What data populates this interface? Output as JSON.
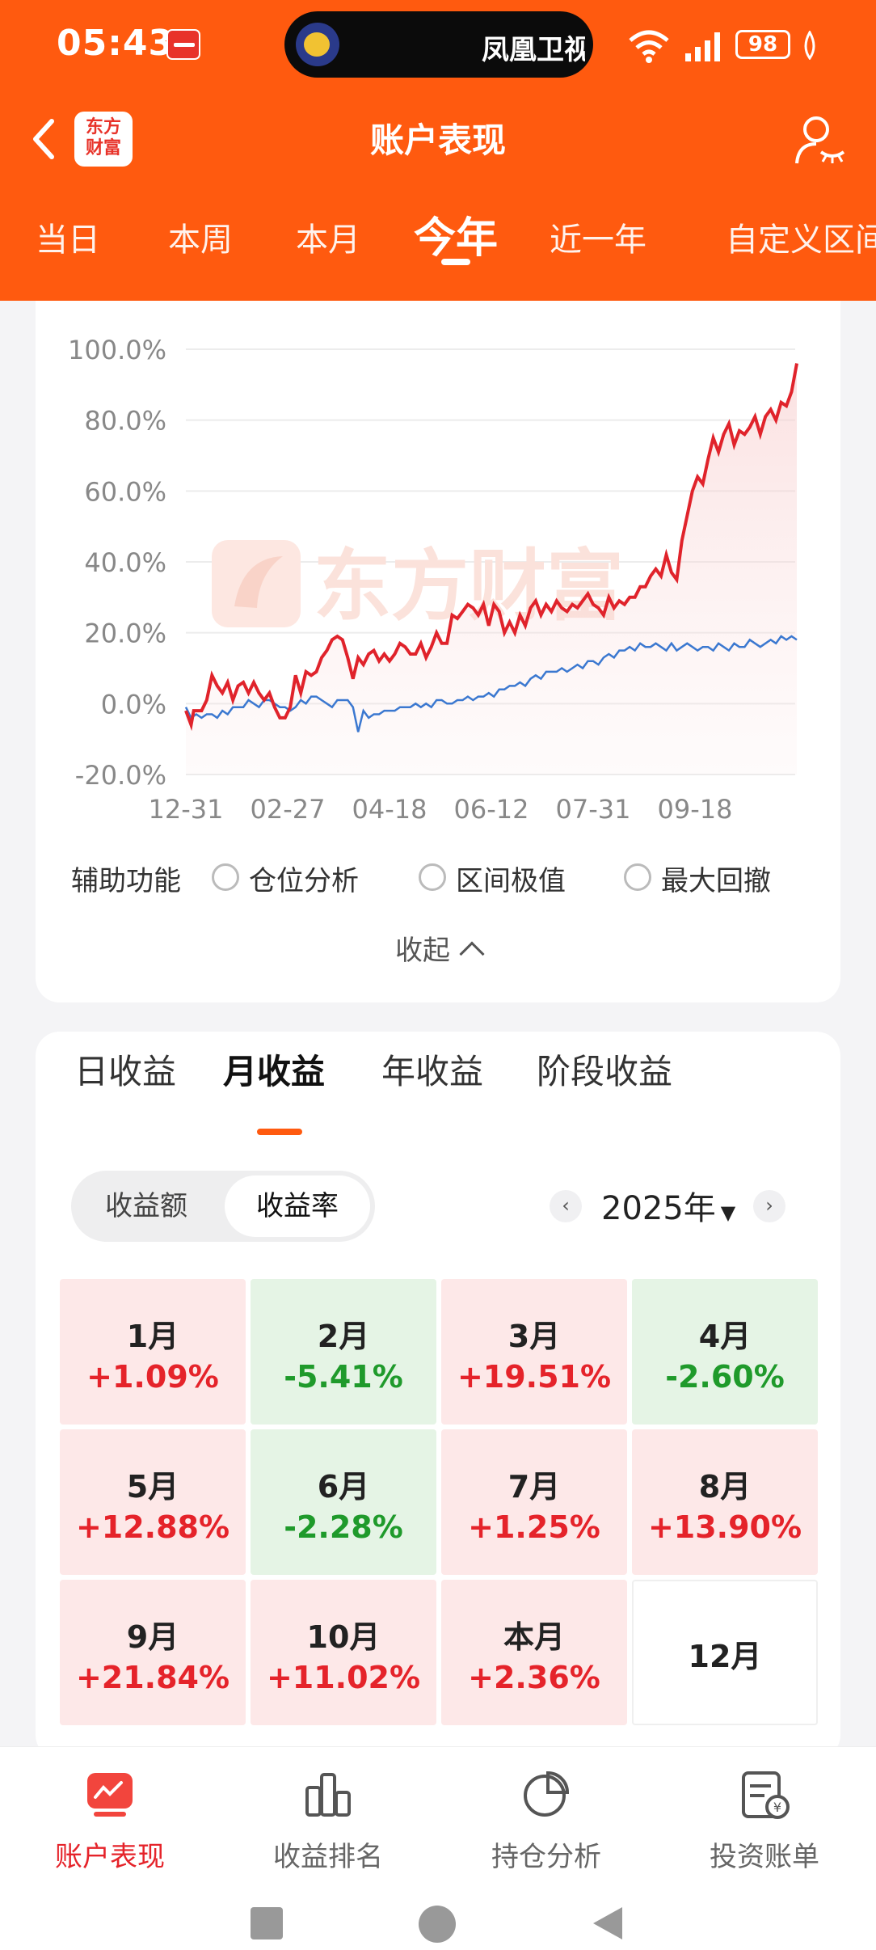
{
  "status_bar": {
    "time": "05:43",
    "island_text": "凤凰卫视",
    "battery": "98"
  },
  "nav": {
    "logo_line1": "东方",
    "logo_line2": "财富",
    "title": "账户表现"
  },
  "period_tabs": [
    {
      "label": "当日"
    },
    {
      "label": "本周"
    },
    {
      "label": "本月"
    },
    {
      "label": "今年",
      "active": true
    },
    {
      "label": "近一年"
    },
    {
      "label": "自定义区间"
    }
  ],
  "watermark": "东方财富",
  "chart_data": {
    "type": "line",
    "x_ticks": [
      "12-31",
      "02-27",
      "04-18",
      "06-12",
      "07-31",
      "09-18"
    ],
    "y_ticks": [
      "100.0%",
      "80.0%",
      "60.0%",
      "40.0%",
      "20.0%",
      "0.0%",
      "-20.0%"
    ],
    "ylim": [
      -20,
      100
    ],
    "grid": true,
    "series": [
      {
        "color": "#e0232b",
        "points": [
          [
            0,
            -2
          ],
          [
            2,
            -6
          ],
          [
            3,
            -2
          ],
          [
            6,
            -2
          ],
          [
            8,
            1
          ],
          [
            10,
            8
          ],
          [
            12,
            5
          ],
          [
            14,
            3
          ],
          [
            16,
            6
          ],
          [
            18,
            1
          ],
          [
            20,
            5
          ],
          [
            22,
            6
          ],
          [
            24,
            3
          ],
          [
            26,
            6
          ],
          [
            28,
            3
          ],
          [
            30,
            1
          ],
          [
            32,
            3
          ],
          [
            34,
            -1
          ],
          [
            36,
            -4
          ],
          [
            38,
            -4
          ],
          [
            40,
            -1
          ],
          [
            42,
            8
          ],
          [
            44,
            3
          ],
          [
            46,
            9
          ],
          [
            48,
            8
          ],
          [
            50,
            9
          ],
          [
            52,
            13
          ],
          [
            54,
            15
          ],
          [
            56,
            18
          ],
          [
            58,
            19
          ],
          [
            60,
            18
          ],
          [
            62,
            13
          ],
          [
            64,
            7
          ],
          [
            66,
            13
          ],
          [
            68,
            11
          ],
          [
            70,
            14
          ],
          [
            72,
            15
          ],
          [
            74,
            12
          ],
          [
            76,
            14
          ],
          [
            78,
            12
          ],
          [
            80,
            14
          ],
          [
            82,
            17
          ],
          [
            84,
            16
          ],
          [
            86,
            14
          ],
          [
            88,
            14
          ],
          [
            90,
            17
          ],
          [
            92,
            13
          ],
          [
            94,
            16
          ],
          [
            96,
            20
          ],
          [
            98,
            17
          ],
          [
            100,
            17
          ],
          [
            102,
            25
          ],
          [
            104,
            24
          ],
          [
            106,
            26
          ],
          [
            108,
            28
          ],
          [
            110,
            27
          ],
          [
            112,
            25
          ],
          [
            114,
            28
          ],
          [
            116,
            22
          ],
          [
            118,
            28
          ],
          [
            120,
            26
          ],
          [
            122,
            20
          ],
          [
            124,
            23
          ],
          [
            126,
            20
          ],
          [
            128,
            25
          ],
          [
            130,
            22
          ],
          [
            132,
            27
          ],
          [
            134,
            29
          ],
          [
            136,
            25
          ],
          [
            138,
            28
          ],
          [
            140,
            26
          ],
          [
            142,
            29
          ],
          [
            144,
            27
          ],
          [
            146,
            26
          ],
          [
            148,
            28
          ],
          [
            150,
            27
          ],
          [
            152,
            29
          ],
          [
            154,
            31
          ],
          [
            156,
            28
          ],
          [
            158,
            27
          ],
          [
            160,
            25
          ],
          [
            162,
            30
          ],
          [
            164,
            27
          ],
          [
            166,
            29
          ],
          [
            168,
            28
          ],
          [
            170,
            30
          ],
          [
            172,
            30
          ],
          [
            174,
            33
          ],
          [
            176,
            33
          ],
          [
            178,
            36
          ],
          [
            180,
            38
          ],
          [
            182,
            36
          ],
          [
            184,
            42
          ],
          [
            186,
            37
          ],
          [
            188,
            35
          ],
          [
            190,
            46
          ],
          [
            192,
            53
          ],
          [
            194,
            60
          ],
          [
            196,
            64
          ],
          [
            198,
            62
          ],
          [
            200,
            69
          ],
          [
            202,
            75
          ],
          [
            204,
            71
          ],
          [
            206,
            76
          ],
          [
            208,
            79
          ],
          [
            210,
            73
          ],
          [
            212,
            77
          ],
          [
            214,
            76
          ],
          [
            216,
            78
          ],
          [
            218,
            81
          ],
          [
            220,
            76
          ],
          [
            222,
            81
          ],
          [
            224,
            83
          ],
          [
            226,
            80
          ],
          [
            228,
            85
          ],
          [
            230,
            84
          ],
          [
            232,
            88
          ],
          [
            234,
            96
          ]
        ]
      },
      {
        "color": "#3b78d0",
        "points": [
          [
            0,
            -1
          ],
          [
            2,
            -4
          ],
          [
            4,
            -3
          ],
          [
            6,
            -4
          ],
          [
            8,
            -3
          ],
          [
            10,
            -3
          ],
          [
            12,
            -4
          ],
          [
            14,
            -2
          ],
          [
            16,
            -3
          ],
          [
            18,
            -1
          ],
          [
            20,
            -1
          ],
          [
            22,
            -1
          ],
          [
            24,
            1
          ],
          [
            26,
            0
          ],
          [
            28,
            -1
          ],
          [
            30,
            1
          ],
          [
            32,
            1
          ],
          [
            34,
            0
          ],
          [
            36,
            -1
          ],
          [
            38,
            -1
          ],
          [
            40,
            -2
          ],
          [
            42,
            -1
          ],
          [
            44,
            1
          ],
          [
            46,
            0
          ],
          [
            48,
            2
          ],
          [
            50,
            2
          ],
          [
            52,
            1
          ],
          [
            54,
            0
          ],
          [
            56,
            -1
          ],
          [
            58,
            1
          ],
          [
            60,
            1
          ],
          [
            62,
            1
          ],
          [
            64,
            -1
          ],
          [
            66,
            -8
          ],
          [
            68,
            -2
          ],
          [
            70,
            -4
          ],
          [
            72,
            -3
          ],
          [
            74,
            -3
          ],
          [
            76,
            -2
          ],
          [
            78,
            -2
          ],
          [
            80,
            -2
          ],
          [
            82,
            -1
          ],
          [
            84,
            -1
          ],
          [
            86,
            -1
          ],
          [
            88,
            0
          ],
          [
            90,
            -1
          ],
          [
            92,
            0
          ],
          [
            94,
            -1
          ],
          [
            96,
            1
          ],
          [
            98,
            1
          ],
          [
            100,
            0
          ],
          [
            102,
            0
          ],
          [
            104,
            1
          ],
          [
            106,
            1
          ],
          [
            108,
            2
          ],
          [
            110,
            1
          ],
          [
            112,
            2
          ],
          [
            114,
            2
          ],
          [
            116,
            3
          ],
          [
            118,
            2
          ],
          [
            120,
            4
          ],
          [
            122,
            4
          ],
          [
            124,
            5
          ],
          [
            126,
            5
          ],
          [
            128,
            6
          ],
          [
            130,
            5
          ],
          [
            132,
            7
          ],
          [
            134,
            8
          ],
          [
            136,
            7
          ],
          [
            138,
            9
          ],
          [
            140,
            9
          ],
          [
            142,
            9
          ],
          [
            144,
            10
          ],
          [
            146,
            9
          ],
          [
            148,
            10
          ],
          [
            150,
            11
          ],
          [
            152,
            10
          ],
          [
            154,
            12
          ],
          [
            156,
            12
          ],
          [
            158,
            11
          ],
          [
            160,
            13
          ],
          [
            162,
            14
          ],
          [
            164,
            13
          ],
          [
            166,
            15
          ],
          [
            168,
            15
          ],
          [
            170,
            16
          ],
          [
            172,
            15
          ],
          [
            174,
            17
          ],
          [
            176,
            16
          ],
          [
            178,
            16
          ],
          [
            180,
            17
          ],
          [
            182,
            16
          ],
          [
            184,
            15
          ],
          [
            186,
            17
          ],
          [
            188,
            15
          ],
          [
            190,
            16
          ],
          [
            192,
            17
          ],
          [
            194,
            16
          ],
          [
            196,
            15
          ],
          [
            198,
            16
          ],
          [
            200,
            16
          ],
          [
            202,
            15
          ],
          [
            204,
            17
          ],
          [
            206,
            16
          ],
          [
            208,
            15
          ],
          [
            210,
            17
          ],
          [
            212,
            16
          ],
          [
            214,
            16
          ],
          [
            216,
            18
          ],
          [
            218,
            17
          ],
          [
            220,
            16
          ],
          [
            222,
            17
          ],
          [
            224,
            18
          ],
          [
            226,
            17
          ],
          [
            228,
            19
          ],
          [
            230,
            18
          ],
          [
            232,
            19
          ],
          [
            234,
            18
          ]
        ]
      }
    ]
  },
  "aux": {
    "label": "辅助功能",
    "options": [
      "仓位分析",
      "区间极值",
      "最大回撤"
    ],
    "collapse": "收起"
  },
  "returns": {
    "tabs": [
      {
        "label": "日收益"
      },
      {
        "label": "月收益",
        "active": true
      },
      {
        "label": "年收益"
      },
      {
        "label": "阶段收益"
      }
    ],
    "segment": [
      "收益额",
      "收益率"
    ],
    "year": "2025年",
    "months": [
      {
        "m": "1月",
        "v": "+1.09%",
        "t": "up"
      },
      {
        "m": "2月",
        "v": "-5.41%",
        "t": "down"
      },
      {
        "m": "3月",
        "v": "+19.51%",
        "t": "up"
      },
      {
        "m": "4月",
        "v": "-2.60%",
        "t": "down"
      },
      {
        "m": "5月",
        "v": "+12.88%",
        "t": "up"
      },
      {
        "m": "6月",
        "v": "-2.28%",
        "t": "down"
      },
      {
        "m": "7月",
        "v": "+1.25%",
        "t": "up"
      },
      {
        "m": "8月",
        "v": "+13.90%",
        "t": "up"
      },
      {
        "m": "9月",
        "v": "+21.84%",
        "t": "up"
      },
      {
        "m": "10月",
        "v": "+11.02%",
        "t": "up"
      },
      {
        "m": "本月",
        "v": "+2.36%",
        "t": "up"
      },
      {
        "m": "12月",
        "v": "",
        "t": "empty"
      }
    ]
  },
  "bottom_nav": [
    {
      "label": "账户表现",
      "active": true
    },
    {
      "label": "收益排名"
    },
    {
      "label": "持仓分析"
    },
    {
      "label": "投资账单"
    }
  ]
}
